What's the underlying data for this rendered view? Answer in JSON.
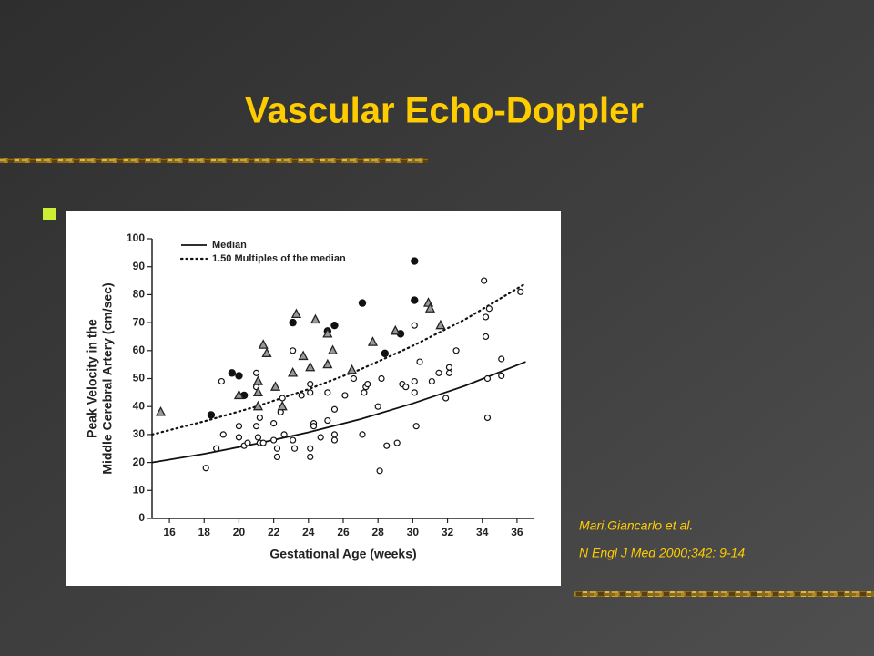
{
  "title": "Vascular Echo-Doppler",
  "citation": [
    "Mari,Giancarlo et al.",
    "N Engl J Med 2000;342: 9-14"
  ],
  "chart_data": {
    "type": "scatter",
    "xlabel": "Gestational Age (weeks)",
    "ylabel": [
      "Peak Velocity in the",
      "Middle Cerebral Artery (cm/sec)"
    ],
    "xlim": [
      15,
      37
    ],
    "ylim": [
      0,
      100
    ],
    "xticks": [
      16,
      18,
      20,
      22,
      24,
      26,
      28,
      30,
      32,
      34,
      36
    ],
    "yticks": [
      0,
      10,
      20,
      30,
      40,
      50,
      60,
      70,
      80,
      90,
      100
    ],
    "legend": "upper left",
    "series": [
      {
        "name": "Median",
        "kind": "line",
        "dash": false,
        "color": "#111111",
        "x": [
          15,
          18,
          21,
          24,
          27,
          30,
          33,
          36.5
        ],
        "values": [
          20,
          23.1,
          26.7,
          30.8,
          35.5,
          41.1,
          47.4,
          56
        ]
      },
      {
        "name": "1.50 Multiples of the median",
        "kind": "line",
        "dash": true,
        "color": "#111111",
        "x": [
          15,
          18,
          21,
          24,
          27,
          30,
          33,
          36.5
        ],
        "values": [
          30,
          34.7,
          40,
          46.2,
          53.3,
          61.7,
          71.1,
          84
        ]
      },
      {
        "kind": "scatter",
        "marker": "circle-open",
        "color": "#111111",
        "x": [
          18.1,
          18.7,
          19.1,
          19,
          20,
          20,
          20.3,
          20.5,
          21,
          21,
          21,
          21.1,
          21.2,
          21.2,
          21.4,
          22,
          22,
          22.2,
          22.2,
          22.4,
          22.5,
          22.6,
          23.1,
          23.2,
          23.1,
          23.6,
          24.1,
          24.1,
          24.1,
          24.1,
          24.3,
          24.3,
          24.7,
          25.1,
          25.1,
          25.5,
          25.5,
          25.5,
          26.1,
          26.6,
          27.1,
          27.2,
          27.3,
          27.4,
          28.1,
          28,
          28.2,
          28.5,
          29.1,
          29.4,
          29.6,
          30.1,
          30.1,
          30.1,
          30.2,
          30.4,
          31.1,
          31.5,
          31.9,
          32.1,
          32.1,
          32.5,
          34.1,
          34.2,
          34.2,
          34.3,
          34.3,
          34.4,
          35.1,
          35.1,
          36.2
        ],
        "values": [
          18,
          25,
          30,
          49,
          33,
          29,
          26,
          27,
          33,
          52,
          47,
          29,
          27,
          36,
          27,
          34,
          28,
          25,
          22,
          38,
          43,
          30,
          28,
          25,
          60,
          44,
          48,
          45,
          25,
          22,
          34,
          33,
          29,
          35,
          45,
          30,
          28,
          39,
          44,
          50,
          30,
          45,
          47,
          48,
          17,
          40,
          50,
          26,
          27,
          48,
          47,
          69,
          49,
          45,
          33,
          56,
          49,
          52,
          43,
          54,
          52,
          60,
          85,
          72,
          65,
          50,
          36,
          75,
          57,
          51,
          81
        ]
      },
      {
        "kind": "scatter",
        "marker": "circle-filled",
        "color": "#111111",
        "x": [
          18.4,
          19.6,
          20,
          20.3,
          23.1,
          25.1,
          25.5,
          27.1,
          28.4,
          29.3,
          30.1,
          30.1
        ],
        "values": [
          37,
          52,
          51,
          44,
          70,
          67,
          69,
          77,
          59,
          66,
          92,
          78
        ]
      },
      {
        "kind": "scatter",
        "marker": "triangle",
        "color": "#999999",
        "x": [
          15.5,
          20,
          21.1,
          21.1,
          21.1,
          21.4,
          21.6,
          22.1,
          22.5,
          23.1,
          23.3,
          23.7,
          24.1,
          24.4,
          25.1,
          25.1,
          25.4,
          26.5,
          27.7,
          29,
          30.9,
          31,
          31.6
        ],
        "values": [
          38,
          44,
          40,
          45,
          49,
          62,
          59,
          47,
          40,
          52,
          73,
          58,
          54,
          71,
          55,
          66,
          60,
          53,
          63,
          67,
          77,
          75,
          69
        ]
      }
    ]
  }
}
